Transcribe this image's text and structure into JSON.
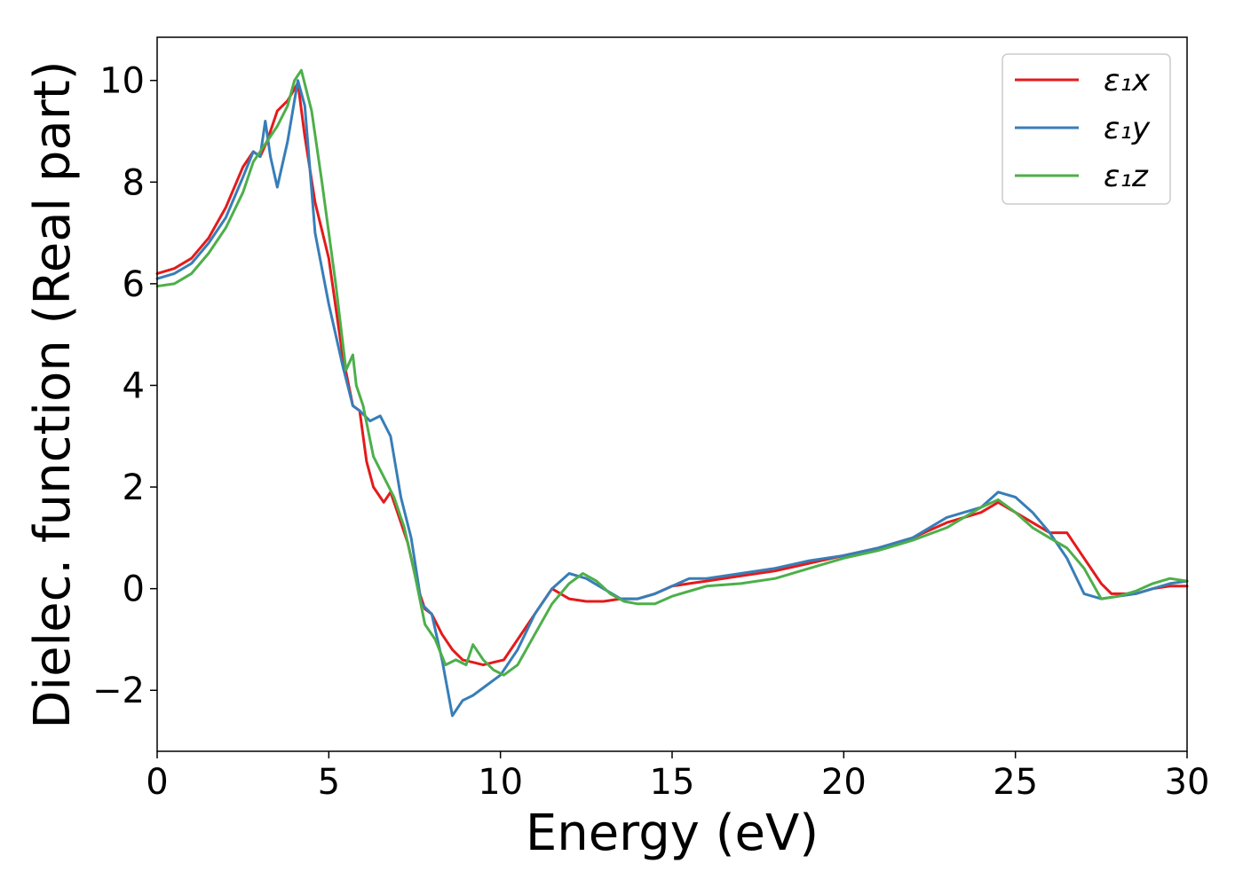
{
  "chart_data": {
    "type": "line",
    "xlabel": "Energy (eV)",
    "ylabel": "Dielec. function (Real part)",
    "xlim": [
      0,
      30
    ],
    "ylim": [
      -3.2,
      10.85
    ],
    "xticks": [
      0,
      5,
      10,
      15,
      20,
      25,
      30
    ],
    "xtick_labels": [
      "0",
      "5",
      "10",
      "15",
      "20",
      "25",
      "30"
    ],
    "yticks": [
      -2,
      0,
      2,
      4,
      6,
      8,
      10
    ],
    "ytick_labels": [
      "−2",
      "0",
      "2",
      "4",
      "6",
      "8",
      "10"
    ],
    "grid": false,
    "legend_position": "top-right",
    "series": [
      {
        "name": "ε₁x",
        "color": "#e41a1c",
        "x": [
          0,
          0.5,
          1,
          1.5,
          2,
          2.5,
          2.8,
          3.0,
          3.2,
          3.5,
          3.8,
          4.1,
          4.3,
          4.6,
          5.0,
          5.4,
          5.7,
          5.9,
          6.1,
          6.3,
          6.6,
          6.8,
          7.0,
          7.3,
          7.6,
          7.8,
          8.0,
          8.3,
          8.6,
          8.9,
          9.2,
          9.5,
          9.8,
          10.1,
          10.5,
          11.0,
          11.5,
          12.0,
          12.5,
          13.0,
          13.5,
          14.0,
          14.5,
          15.0,
          15.5,
          16.0,
          17.0,
          18.0,
          19.0,
          20.0,
          21.0,
          22.0,
          23.0,
          23.5,
          24.0,
          24.5,
          25.0,
          25.5,
          26.0,
          26.5,
          27.0,
          27.5,
          27.8,
          28.5,
          29.0,
          29.5,
          30.0
        ],
        "values": [
          6.2,
          6.3,
          6.5,
          6.9,
          7.5,
          8.3,
          8.6,
          8.5,
          8.8,
          9.4,
          9.6,
          9.95,
          8.9,
          7.6,
          6.5,
          4.6,
          3.6,
          3.5,
          2.5,
          2.0,
          1.7,
          1.9,
          1.5,
          0.9,
          0.0,
          -0.4,
          -0.5,
          -0.9,
          -1.2,
          -1.4,
          -1.45,
          -1.5,
          -1.45,
          -1.4,
          -1.0,
          -0.5,
          0.0,
          -0.2,
          -0.25,
          -0.25,
          -0.2,
          -0.2,
          -0.1,
          0.05,
          0.1,
          0.15,
          0.25,
          0.35,
          0.5,
          0.65,
          0.8,
          1.0,
          1.3,
          1.4,
          1.5,
          1.7,
          1.5,
          1.3,
          1.1,
          1.1,
          0.6,
          0.1,
          -0.1,
          -0.1,
          0.0,
          0.05,
          0.05
        ]
      },
      {
        "name": "ε₁y",
        "color": "#377eb8",
        "x": [
          0,
          0.5,
          1,
          1.5,
          2,
          2.5,
          2.8,
          3.0,
          3.15,
          3.3,
          3.5,
          3.8,
          4.1,
          4.3,
          4.6,
          5.0,
          5.4,
          5.7,
          5.9,
          6.2,
          6.5,
          6.8,
          7.1,
          7.4,
          7.7,
          8.0,
          8.3,
          8.6,
          8.9,
          9.2,
          9.6,
          10.0,
          10.5,
          11.0,
          11.5,
          12.0,
          12.5,
          13.0,
          13.5,
          14.0,
          14.5,
          15.0,
          15.5,
          16.0,
          17.0,
          18.0,
          19.0,
          20.0,
          21.0,
          22.0,
          23.0,
          23.5,
          24.0,
          24.5,
          25.0,
          25.5,
          26.0,
          26.5,
          27.0,
          27.5,
          28.0,
          28.5,
          29.0,
          29.5,
          30.0
        ],
        "values": [
          6.1,
          6.2,
          6.4,
          6.8,
          7.3,
          8.1,
          8.6,
          8.5,
          9.2,
          8.5,
          7.9,
          8.8,
          10.0,
          9.5,
          7.0,
          5.6,
          4.4,
          3.6,
          3.5,
          3.3,
          3.4,
          3.0,
          1.8,
          1.0,
          -0.3,
          -0.5,
          -1.4,
          -2.5,
          -2.2,
          -2.1,
          -1.9,
          -1.7,
          -1.2,
          -0.5,
          0.0,
          0.3,
          0.2,
          0.0,
          -0.2,
          -0.2,
          -0.1,
          0.05,
          0.2,
          0.2,
          0.3,
          0.4,
          0.55,
          0.65,
          0.8,
          1.0,
          1.4,
          1.5,
          1.6,
          1.9,
          1.8,
          1.5,
          1.1,
          0.6,
          -0.1,
          -0.2,
          -0.15,
          -0.1,
          0.0,
          0.1,
          0.15
        ]
      },
      {
        "name": "ε₁z",
        "color": "#4daf4a",
        "x": [
          0,
          0.5,
          1,
          1.5,
          2,
          2.5,
          2.8,
          3.0,
          3.2,
          3.5,
          3.8,
          4.0,
          4.2,
          4.5,
          4.8,
          5.2,
          5.5,
          5.7,
          5.8,
          6.0,
          6.3,
          6.6,
          6.9,
          7.2,
          7.5,
          7.8,
          8.1,
          8.4,
          8.7,
          9.0,
          9.2,
          9.5,
          9.8,
          10.1,
          10.5,
          11.0,
          11.5,
          12.0,
          12.4,
          12.8,
          13.2,
          13.6,
          14.0,
          14.5,
          15.0,
          15.5,
          16.0,
          17.0,
          18.0,
          19.0,
          20.0,
          21.0,
          22.0,
          23.0,
          23.5,
          24.0,
          24.5,
          25.0,
          25.5,
          26.0,
          26.5,
          27.0,
          27.5,
          28.0,
          28.5,
          29.0,
          29.5,
          30.0
        ],
        "values": [
          5.95,
          6.0,
          6.2,
          6.6,
          7.1,
          7.8,
          8.4,
          8.6,
          8.8,
          9.1,
          9.5,
          10.0,
          10.2,
          9.4,
          8.0,
          6.0,
          4.3,
          4.6,
          4.0,
          3.6,
          2.6,
          2.2,
          1.8,
          1.2,
          0.3,
          -0.7,
          -1.0,
          -1.5,
          -1.4,
          -1.5,
          -1.1,
          -1.4,
          -1.6,
          -1.7,
          -1.5,
          -0.9,
          -0.3,
          0.1,
          0.3,
          0.15,
          -0.1,
          -0.25,
          -0.3,
          -0.3,
          -0.15,
          -0.05,
          0.05,
          0.1,
          0.2,
          0.4,
          0.6,
          0.75,
          0.95,
          1.2,
          1.4,
          1.6,
          1.75,
          1.5,
          1.2,
          1.0,
          0.8,
          0.4,
          -0.2,
          -0.15,
          -0.05,
          0.1,
          0.2,
          0.15
        ]
      }
    ]
  }
}
